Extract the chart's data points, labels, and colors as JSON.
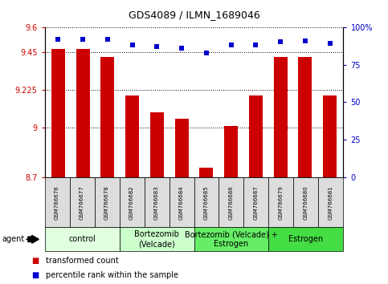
{
  "title": "GDS4089 / ILMN_1689046",
  "samples": [
    "GSM766676",
    "GSM766677",
    "GSM766678",
    "GSM766682",
    "GSM766683",
    "GSM766684",
    "GSM766685",
    "GSM766686",
    "GSM766687",
    "GSM766679",
    "GSM766680",
    "GSM766681"
  ],
  "bar_values": [
    9.47,
    9.47,
    9.42,
    9.19,
    9.09,
    9.05,
    8.76,
    9.01,
    9.19,
    9.42,
    9.42,
    9.19
  ],
  "percentile_values": [
    92,
    92,
    92,
    88,
    87,
    86,
    83,
    88,
    88,
    90,
    91,
    89
  ],
  "ylim_left": [
    8.7,
    9.6
  ],
  "ylim_right": [
    0,
    100
  ],
  "yticks_left": [
    8.7,
    9.0,
    9.225,
    9.45,
    9.6
  ],
  "ytick_labels_left": [
    "8.7",
    "9",
    "9.225",
    "9.45",
    "9.6"
  ],
  "yticks_right": [
    0,
    25,
    50,
    75,
    100
  ],
  "ytick_labels_right": [
    "0",
    "25",
    "50",
    "75",
    "100%"
  ],
  "bar_color": "#CC0000",
  "dot_color": "#0000CC",
  "bar_width": 0.55,
  "group_defs": [
    [
      "control",
      0,
      3,
      "#DFFFDF"
    ],
    [
      "Bortezomib\n(Velcade)",
      3,
      6,
      "#CCFFCC"
    ],
    [
      "Bortezomib (Velcade) +\nEstrogen",
      6,
      9,
      "#66EE66"
    ],
    [
      "Estrogen",
      9,
      12,
      "#44DD44"
    ]
  ],
  "agent_label": "agent",
  "legend1_label": "transformed count",
  "legend2_label": "percentile rank within the sample",
  "tick_color_left": "#CC0000",
  "tick_color_right": "#0000CC",
  "sample_box_color": "#DDDDDD",
  "title_fontsize": 9,
  "tick_fontsize": 7,
  "label_fontsize": 6.5,
  "sample_fontsize": 5.0,
  "group_fontsize": 7,
  "legend_fontsize": 7
}
